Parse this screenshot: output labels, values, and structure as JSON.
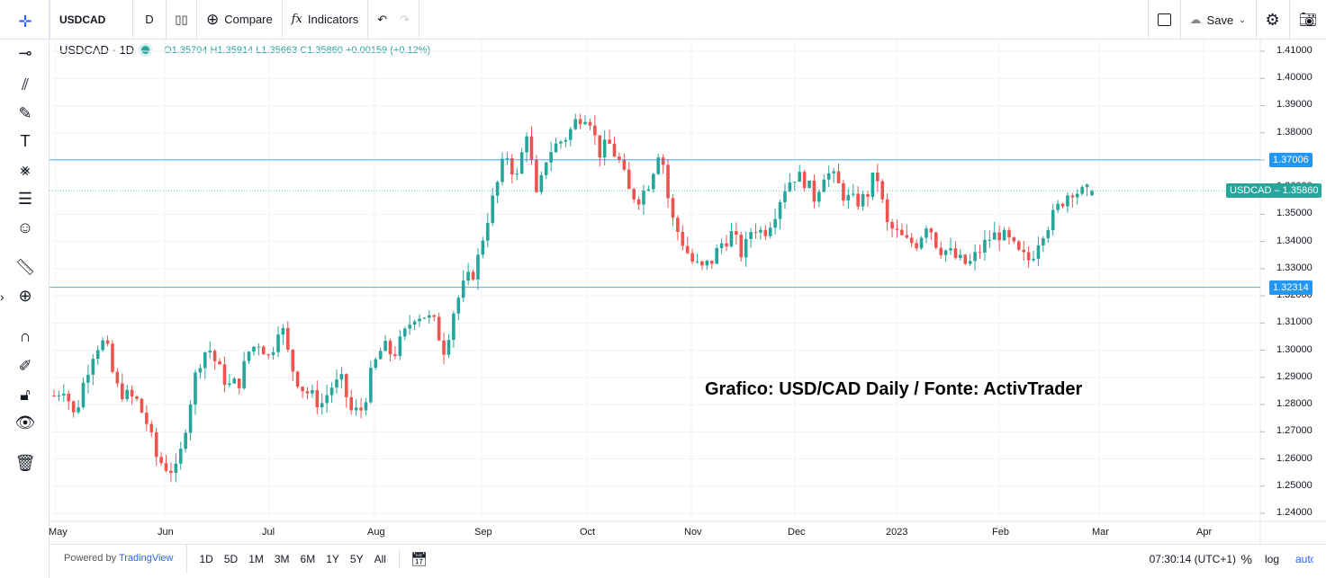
{
  "toolbar": {
    "symbol": "USDCAD",
    "interval": "D",
    "compare": "Compare",
    "indicators": "Indicators",
    "save": "Save"
  },
  "legend": {
    "title": "USDCAD · 1D",
    "open": "O1.35704",
    "high": "H1.35914",
    "low": "L1.35663",
    "close": "C1.35860",
    "change": "+0.00159 (+0.12%)"
  },
  "annotation": "Grafico: USD/CAD Daily / Fonte: ActivTrader",
  "bottom": {
    "powered_prefix": "Powered by ",
    "powered_brand": "TradingView",
    "ranges": [
      "1D",
      "5D",
      "1M",
      "3M",
      "6M",
      "1Y",
      "5Y",
      "All"
    ],
    "clock": "07:30:14 (UTC+1)",
    "percent": "%",
    "log": "log",
    "auto": "auto"
  },
  "colors": {
    "up": "#26a69a",
    "down": "#ef5350",
    "hline": "#2196f3"
  },
  "chart_data": {
    "type": "candlestick",
    "symbol": "USDCAD",
    "interval": "1D",
    "x_range": [
      "2022-05",
      "2023-02"
    ],
    "x_ticks": [
      "May",
      "Jun",
      "Jul",
      "Aug",
      "Sep",
      "Oct",
      "Nov",
      "Dec",
      "2023",
      "Feb",
      "Mar",
      "Apr"
    ],
    "ylim": [
      1.235,
      1.415
    ],
    "y_ticks": [
      "1.41000",
      "1.40000",
      "1.39000",
      "1.38000",
      "1.37000",
      "1.36000",
      "1.35000",
      "1.34000",
      "1.33000",
      "1.32000",
      "1.31000",
      "1.30000",
      "1.29000",
      "1.28000",
      "1.27000",
      "1.26000",
      "1.25000",
      "1.24000"
    ],
    "approx_closes": [
      1.2833,
      1.2867,
      1.275,
      1.29,
      1.3015,
      1.303,
      1.2867,
      1.2833,
      1.2817,
      1.2735,
      1.2602,
      1.2569,
      1.2552,
      1.2767,
      1.2949,
      1.3015,
      1.2932,
      1.2867,
      1.2883,
      1.2999,
      1.3032,
      1.2966,
      1.3115,
      1.2949,
      1.2867,
      1.2833,
      1.28,
      1.2867,
      1.2883,
      1.2767,
      1.2784,
      1.2932,
      1.3015,
      1.2982,
      1.3048,
      1.3131,
      1.3131,
      1.3098,
      1.2999,
      1.3164,
      1.3247,
      1.3296,
      1.3462,
      1.3594,
      1.3726,
      1.3627,
      1.3809,
      1.3545,
      1.3726,
      1.3759,
      1.3792,
      1.3858,
      1.3875,
      1.3726,
      1.3759,
      1.3693,
      1.3577,
      1.3561,
      1.3627,
      1.3759,
      1.3495,
      1.3412,
      1.333,
      1.3296,
      1.333,
      1.3396,
      1.3429,
      1.3346,
      1.3462,
      1.3429,
      1.3495,
      1.3594,
      1.3643,
      1.3627,
      1.3561,
      1.366,
      1.3627,
      1.3561,
      1.3544,
      1.3561,
      1.366,
      1.3462,
      1.3429,
      1.3396,
      1.3396,
      1.3478,
      1.3379,
      1.3363,
      1.333,
      1.3313,
      1.3363,
      1.3412,
      1.3429,
      1.3396,
      1.3346,
      1.333,
      1.3429,
      1.3478,
      1.3544,
      1.3594,
      1.3577,
      1.3586
    ],
    "last_candle": {
      "open": 1.35704,
      "high": 1.35914,
      "low": 1.35663,
      "close": 1.3586
    },
    "horizontal_lines": [
      {
        "value": 1.37006,
        "label": "1.37006"
      },
      {
        "value": 1.32314,
        "label": "1.32314"
      }
    ],
    "last_price_label": {
      "symbol": "USDCAD",
      "value": "1.35860"
    }
  }
}
